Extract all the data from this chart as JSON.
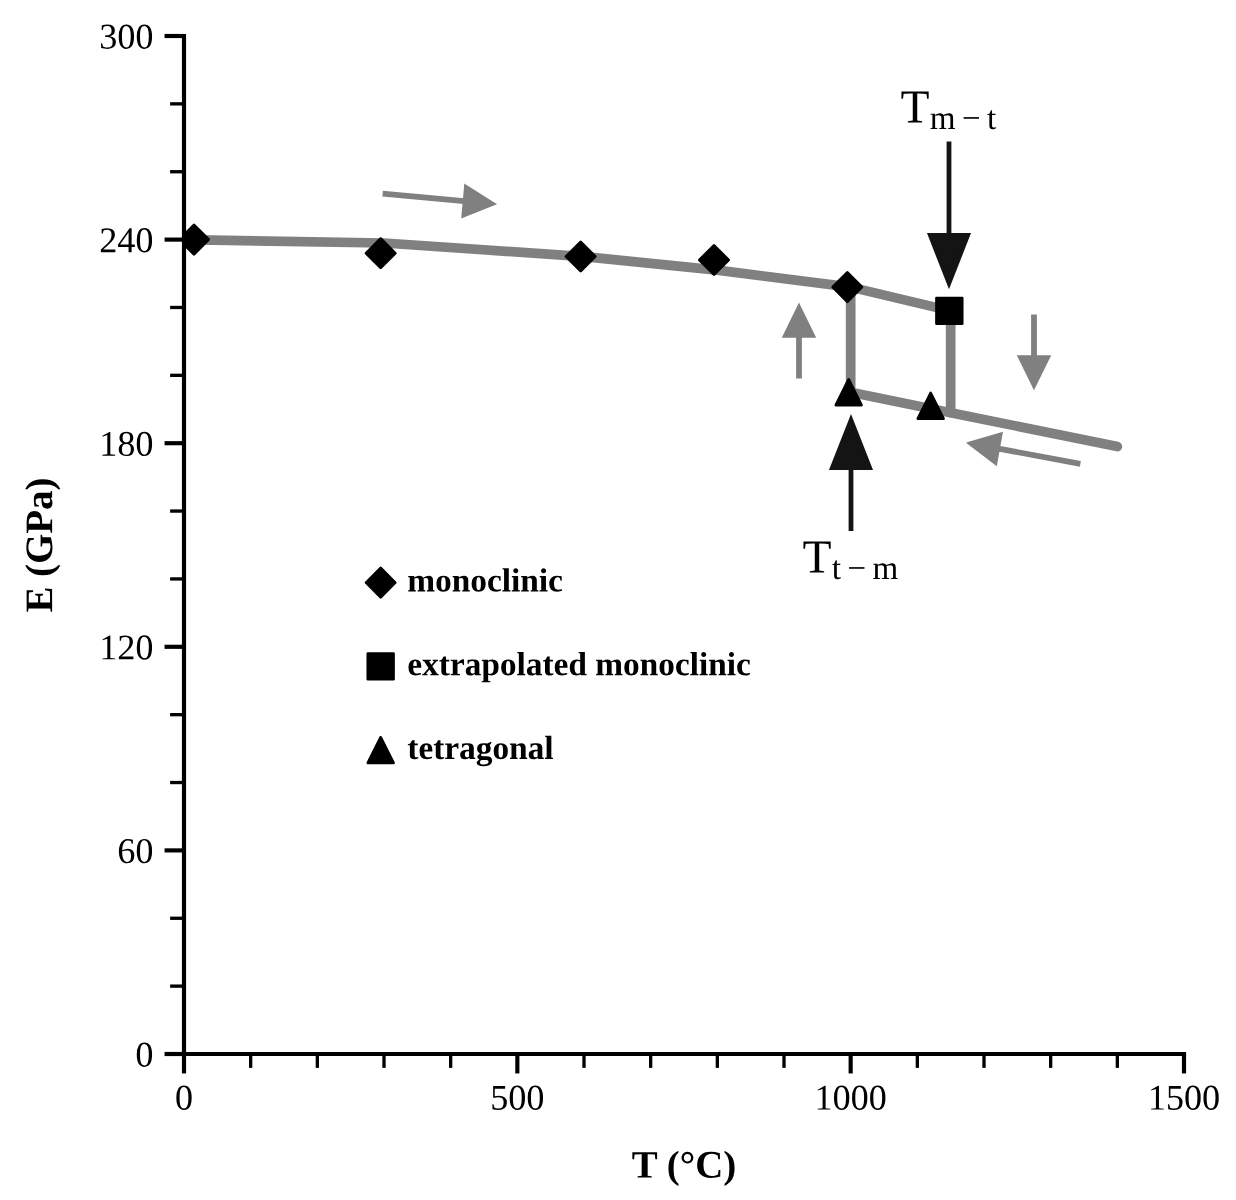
{
  "chart_data": {
    "type": "line",
    "xlabel": "T (°C)",
    "ylabel": "E (GPa)",
    "xlim": [
      0,
      1500
    ],
    "xticks": [
      0,
      500,
      1000,
      1500
    ],
    "ylim": [
      0,
      300
    ],
    "yticks": [
      0,
      60,
      120,
      180,
      240,
      300
    ],
    "grid": false,
    "legend": "left",
    "series": [
      {
        "color": "#808080",
        "x": [
          0,
          300,
          600,
          800,
          1000,
          1150
        ],
        "values": [
          240,
          239,
          235,
          231,
          226,
          219
        ]
      },
      {
        "color": "#808080",
        "x": [
          1000,
          1150,
          1400
        ],
        "values": [
          195,
          189,
          179
        ]
      },
      {
        "color": "#808080",
        "x": [
          1000,
          1000
        ],
        "values": [
          226,
          195
        ]
      },
      {
        "color": "#808080",
        "x": [
          1150,
          1150
        ],
        "values": [
          219,
          189
        ]
      },
      {
        "name": "monoclinic",
        "type": "scatter",
        "marker": "diamond",
        "color": "#000000",
        "x": [
          15,
          295,
          595,
          795,
          995
        ],
        "values": [
          240,
          236,
          235,
          234,
          226
        ]
      },
      {
        "name": "extrapolated monoclinic",
        "type": "scatter",
        "marker": "square",
        "color": "#000000",
        "x": [
          1148
        ],
        "values": [
          219
        ]
      },
      {
        "name": "tetragonal",
        "type": "scatter",
        "marker": "triangle",
        "color": "#000000",
        "x": [
          997,
          1120
        ],
        "values": [
          195,
          191
        ]
      }
    ],
    "annotations": [
      "T$_{m−t}$",
      "T$_{t−m}$"
    ]
  }
}
